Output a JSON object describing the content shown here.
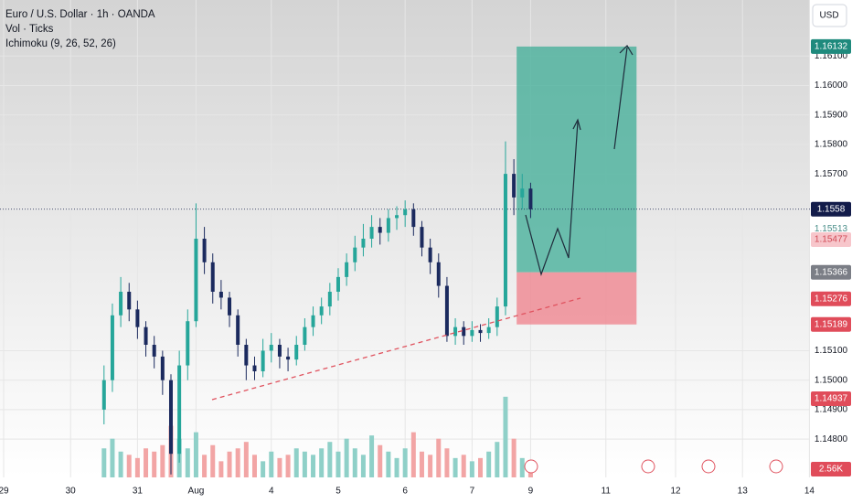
{
  "header": {
    "symbol": "Euro / U.S. Dollar · 1h · OANDA",
    "volume": "Vol · Ticks",
    "indicator": "Ichimoku (9, 26, 52, 26)",
    "currency": "USD"
  },
  "chart_data": {
    "type": "candlestick",
    "xlim": [
      0,
      289
    ],
    "xticks": [
      {
        "value": 0,
        "label": "29"
      },
      {
        "value": 24,
        "label": "30"
      },
      {
        "value": 48,
        "label": "31"
      },
      {
        "value": 69,
        "label": "Aug"
      },
      {
        "value": 96,
        "label": "4"
      },
      {
        "value": 120,
        "label": "5"
      },
      {
        "value": 144,
        "label": "6"
      },
      {
        "value": 168,
        "label": "7"
      },
      {
        "value": 189,
        "label": "9"
      },
      {
        "value": 216,
        "label": "11"
      },
      {
        "value": 241,
        "label": "12"
      },
      {
        "value": 265,
        "label": "13"
      },
      {
        "value": 289,
        "label": "14"
      }
    ],
    "ylim": [
      1.1467,
      1.1629
    ],
    "yticks": [
      {
        "value": 1.148,
        "label": "1.14800"
      },
      {
        "value": 1.149,
        "label": "1.14900"
      },
      {
        "value": 1.15,
        "label": "1.15000"
      },
      {
        "value": 1.151,
        "label": "1.15100"
      },
      {
        "value": 1.157,
        "label": "1.15700"
      },
      {
        "value": 1.158,
        "label": "1.15800"
      },
      {
        "value": 1.159,
        "label": "1.15900"
      },
      {
        "value": 1.16,
        "label": "1.16000"
      },
      {
        "value": 1.161,
        "label": "1.16100"
      }
    ],
    "up_color": "#26a69a",
    "down_color": "#1b2a5e",
    "candles": [
      [
        36,
        1.149,
        1.1505,
        1.1485,
        1.15
      ],
      [
        39,
        1.15,
        1.1526,
        1.1496,
        1.1522
      ],
      [
        42,
        1.1522,
        1.1535,
        1.1518,
        1.153
      ],
      [
        45,
        1.153,
        1.1533,
        1.152,
        1.1524
      ],
      [
        48,
        1.1524,
        1.1527,
        1.1514,
        1.1518
      ],
      [
        51,
        1.1518,
        1.152,
        1.1508,
        1.1512
      ],
      [
        54,
        1.1512,
        1.1515,
        1.1504,
        1.1508
      ],
      [
        57,
        1.1508,
        1.151,
        1.1495,
        1.15
      ],
      [
        60,
        1.15,
        1.1502,
        1.1468,
        1.1475
      ],
      [
        63,
        1.1475,
        1.151,
        1.1472,
        1.1505
      ],
      [
        66,
        1.1505,
        1.1524,
        1.15,
        1.152
      ],
      [
        69,
        1.152,
        1.156,
        1.1518,
        1.1548
      ],
      [
        72,
        1.1548,
        1.1552,
        1.1536,
        1.154
      ],
      [
        75,
        1.154,
        1.1543,
        1.1526,
        1.153
      ],
      [
        78,
        1.153,
        1.1534,
        1.1524,
        1.1528
      ],
      [
        81,
        1.1528,
        1.153,
        1.1518,
        1.1522
      ],
      [
        84,
        1.1522,
        1.1524,
        1.1508,
        1.1512
      ],
      [
        87,
        1.1512,
        1.1514,
        1.15,
        1.1505
      ],
      [
        90,
        1.1505,
        1.1508,
        1.15,
        1.1503
      ],
      [
        93,
        1.1503,
        1.1514,
        1.1501,
        1.151
      ],
      [
        96,
        1.151,
        1.1516,
        1.1506,
        1.1512
      ],
      [
        99,
        1.1512,
        1.1514,
        1.1504,
        1.1508
      ],
      [
        102,
        1.1508,
        1.1511,
        1.1503,
        1.1507
      ],
      [
        105,
        1.1507,
        1.1515,
        1.1505,
        1.1512
      ],
      [
        108,
        1.1512,
        1.1521,
        1.151,
        1.1518
      ],
      [
        111,
        1.1518,
        1.1525,
        1.1515,
        1.1522
      ],
      [
        114,
        1.1522,
        1.1528,
        1.1519,
        1.1525
      ],
      [
        117,
        1.1525,
        1.1533,
        1.1522,
        1.153
      ],
      [
        120,
        1.153,
        1.1538,
        1.1527,
        1.1535
      ],
      [
        123,
        1.1535,
        1.1543,
        1.1532,
        1.154
      ],
      [
        126,
        1.154,
        1.1549,
        1.1537,
        1.1545
      ],
      [
        129,
        1.1545,
        1.1553,
        1.1542,
        1.1548
      ],
      [
        132,
        1.1548,
        1.1556,
        1.1545,
        1.1552
      ],
      [
        135,
        1.1552,
        1.1555,
        1.1546,
        1.155
      ],
      [
        138,
        1.155,
        1.1558,
        1.1547,
        1.1555
      ],
      [
        141,
        1.1555,
        1.1559,
        1.1551,
        1.1556
      ],
      [
        144,
        1.1556,
        1.1561,
        1.1552,
        1.1558
      ],
      [
        147,
        1.1558,
        1.156,
        1.1549,
        1.1552
      ],
      [
        150,
        1.1552,
        1.1554,
        1.1542,
        1.1545
      ],
      [
        153,
        1.1545,
        1.1548,
        1.1536,
        1.154
      ],
      [
        156,
        1.154,
        1.1543,
        1.1528,
        1.1532
      ],
      [
        159,
        1.1532,
        1.1535,
        1.1513,
        1.1515
      ],
      [
        162,
        1.1515,
        1.1521,
        1.1512,
        1.1518
      ],
      [
        165,
        1.1518,
        1.152,
        1.1512,
        1.1515
      ],
      [
        168,
        1.1515,
        1.152,
        1.1513,
        1.1517
      ],
      [
        171,
        1.1517,
        1.1519,
        1.1513,
        1.1516
      ],
      [
        174,
        1.1516,
        1.1521,
        1.1514,
        1.1518
      ],
      [
        177,
        1.1518,
        1.1528,
        1.1515,
        1.1525
      ],
      [
        180,
        1.1525,
        1.1581,
        1.1522,
        1.157
      ],
      [
        183,
        1.157,
        1.1575,
        1.1556,
        1.1562
      ],
      [
        186,
        1.1562,
        1.157,
        1.1558,
        1.1565
      ],
      [
        189,
        1.1565,
        1.1567,
        1.1555,
        1.1558
      ]
    ],
    "volume": [
      9000,
      12000,
      8000,
      7000,
      6000,
      9000,
      8000,
      10000,
      16000,
      12000,
      9000,
      14000,
      7000,
      10000,
      5000,
      8000,
      9000,
      11000,
      7000,
      5000,
      8000,
      6000,
      7000,
      9000,
      8000,
      7000,
      9000,
      11000,
      8000,
      12000,
      9000,
      7000,
      13000,
      10000,
      8000,
      6000,
      9000,
      14000,
      8000,
      7000,
      12000,
      9000,
      6000,
      7000,
      5000,
      6000,
      8000,
      11000,
      25000,
      12000,
      6000,
      2560
    ],
    "vlim": [
      0,
      148000
    ],
    "volume_tag": {
      "value": 2560,
      "label": "2.56K"
    },
    "position": {
      "x": [
        184,
        227
      ],
      "target": 1.16132,
      "entry": 1.15366,
      "stop": 1.15189
    },
    "last_price": 1.1558,
    "price_tags": [
      {
        "value": 1.16132,
        "color": "#1f8a7d",
        "text_color": "#ffffff"
      },
      {
        "value": 1.1558,
        "color": "#131c4a",
        "text_color": "#ffffff"
      },
      {
        "value": 1.15513,
        "color": "#ffffff",
        "text_color": "#4a8f8a"
      },
      {
        "value": 1.15477,
        "color": "#f7c6cb",
        "text_color": "#d04a56"
      },
      {
        "value": 1.15366,
        "color": "#7b7e86",
        "text_color": "#ffffff"
      },
      {
        "value": 1.15276,
        "color": "#e04c5a",
        "text_color": "#ffffff"
      },
      {
        "value": 1.15189,
        "color": "#e04c5a",
        "text_color": "#ffffff"
      },
      {
        "value": 1.14937,
        "color": "#e04c5a",
        "text_color": "#ffffff"
      }
    ]
  }
}
